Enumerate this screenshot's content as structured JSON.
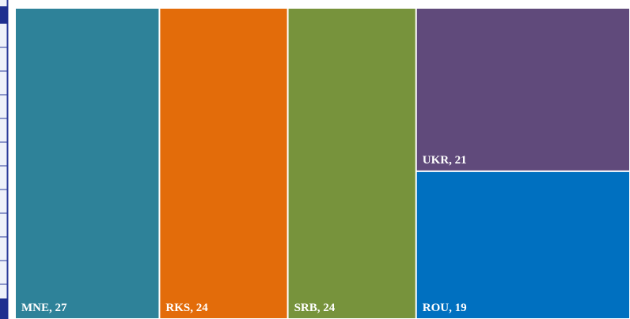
{
  "chart_data": {
    "type": "treemap",
    "values": [
      27,
      24,
      24,
      21,
      19
    ],
    "value_labels": [
      "MNE, 27",
      "RKS, 24",
      "SRB, 24",
      "UKR, 21",
      "ROU, 19"
    ],
    "colors": [
      "#2e8299",
      "#e36c0a",
      "#77933c",
      "#604a7b",
      "#0070c0"
    ]
  }
}
